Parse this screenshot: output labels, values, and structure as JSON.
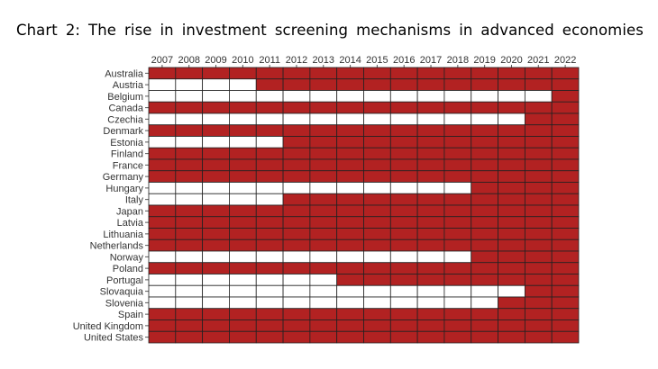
{
  "title": "Chart 2: The rise in investment screening mechanisms in advanced economies",
  "colors": {
    "active": "#b22222",
    "inactive": "#ffffff",
    "border": "#222222"
  },
  "chart_data": {
    "type": "heatmap",
    "title": "Chart 2: The rise in investment screening mechanisms in advanced economies",
    "x": [
      "2007",
      "2008",
      "2009",
      "2010",
      "2011",
      "2012",
      "2013",
      "2014",
      "2015",
      "2016",
      "2017",
      "2018",
      "2019",
      "2020",
      "2021",
      "2022"
    ],
    "y": [
      "Australia",
      "Austria",
      "Belgium",
      "Canada",
      "Czechia",
      "Denmark",
      "Estonia",
      "Finland",
      "France",
      "Germany",
      "Hungary",
      "Italy",
      "Japan",
      "Latvia",
      "Lithuania",
      "Netherlands",
      "Norway",
      "Poland",
      "Portugal",
      "Slovaquia",
      "Slovenia",
      "Spain",
      "United Kingdom",
      "United States"
    ],
    "first_year_with_mechanism": {
      "Australia": 2007,
      "Austria": 2011,
      "Belgium": 2022,
      "Canada": 2007,
      "Czechia": 2021,
      "Denmark": 2007,
      "Estonia": 2012,
      "Finland": 2007,
      "France": 2007,
      "Germany": 2007,
      "Hungary": 2019,
      "Italy": 2012,
      "Japan": 2007,
      "Latvia": 2007,
      "Lithuania": 2007,
      "Netherlands": 2007,
      "Norway": 2019,
      "Poland": 2007,
      "Portugal": 2014,
      "Slovaquia": 2021,
      "Slovenia": 2020,
      "Spain": 2007,
      "United Kingdom": 2007,
      "United States": 2007
    },
    "legend": "none",
    "x_axis_position": "top"
  }
}
